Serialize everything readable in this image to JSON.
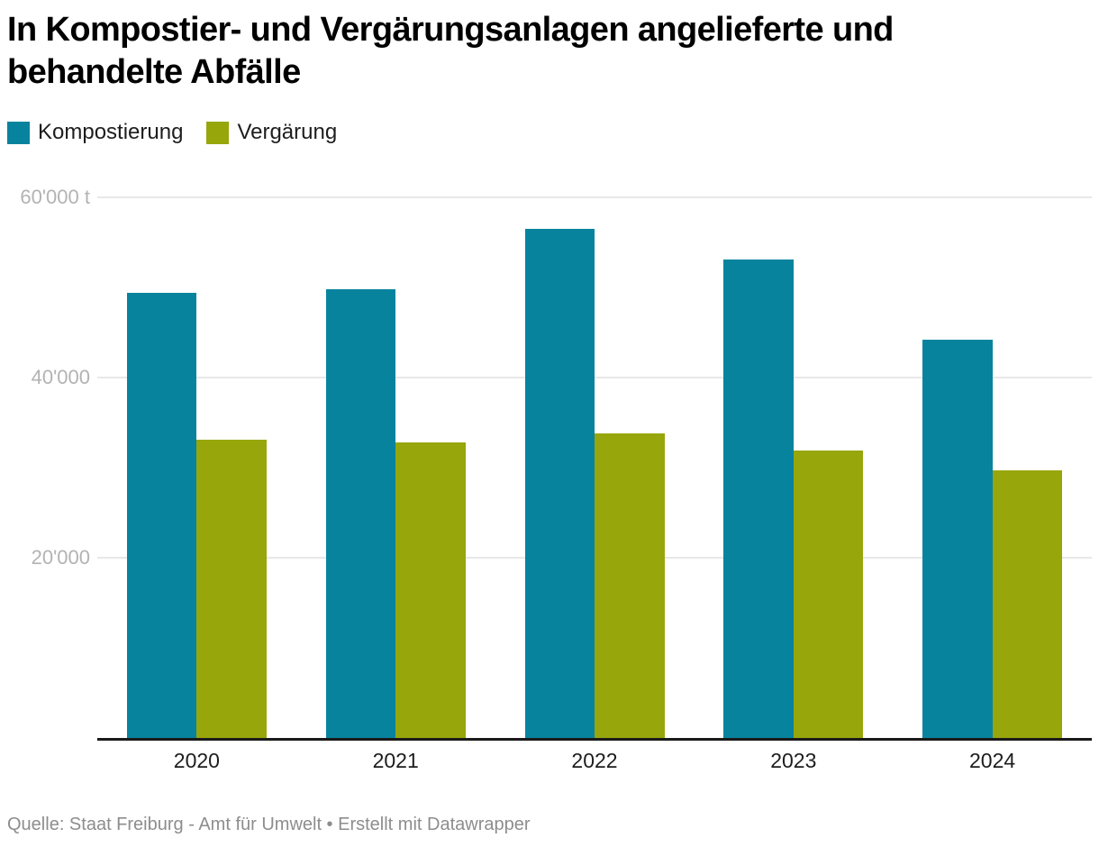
{
  "header": {
    "title_lines": [
      "In Kompostier- und Vergärungsanlagen angelieferte und",
      "behandelte Abfälle"
    ]
  },
  "chart_data": {
    "type": "bar",
    "grouped": true,
    "title": "In Kompostier- und Vergärungsanlagen angelieferte und behandelte Abfälle",
    "categories": [
      "2020",
      "2021",
      "2022",
      "2023",
      "2024"
    ],
    "series": [
      {
        "name": "Kompostierung",
        "color": "#08839E",
        "values": [
          49400,
          49800,
          56500,
          53100,
          44200
        ]
      },
      {
        "name": "Vergärung",
        "color": "#97A60B",
        "values": [
          33100,
          32800,
          33800,
          31900,
          29700
        ]
      }
    ],
    "unit": "t",
    "xlabel": "",
    "ylabel": "",
    "ylim": [
      0,
      62500
    ],
    "yticks": [
      {
        "value": 20000,
        "label": "20'000"
      },
      {
        "value": 40000,
        "label": "40'000"
      },
      {
        "value": 60000,
        "label": "60'000 t"
      }
    ],
    "grid": "horizontal",
    "legend_position": "top-left"
  },
  "footer": {
    "text": "Quelle: Staat Freiburg - Amt für Umwelt • Erstellt mit Datawrapper"
  },
  "colors": {
    "background": "#ffffff",
    "axis_line": "#1a1a1a",
    "gridline": "#e8e8e8",
    "tick_text": "#b3b3b3",
    "category_text": "#1d1d1d",
    "footer_text": "#8d8d8d",
    "title_text": "#000000"
  }
}
